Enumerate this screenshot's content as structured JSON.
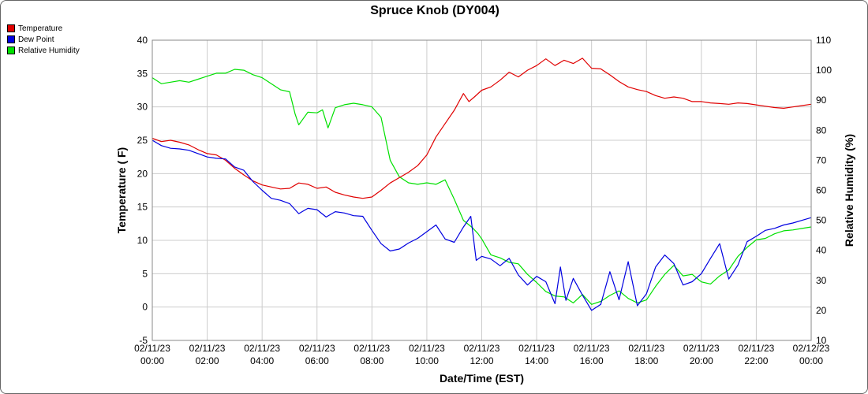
{
  "chart_data": {
    "type": "line",
    "title": "Spruce Knob (DY004)",
    "xlabel": "Date/Time (EST)",
    "ylabel": "Temperature ( F)",
    "y2label": "Relative Humidity (%)",
    "ylim": [
      -5,
      40
    ],
    "y2lim": [
      10,
      110
    ],
    "x_ticks": [
      {
        "hour": 0,
        "date": "02/11/23",
        "time": "00:00"
      },
      {
        "hour": 2,
        "date": "02/11/23",
        "time": "02:00"
      },
      {
        "hour": 4,
        "date": "02/11/23",
        "time": "04:00"
      },
      {
        "hour": 6,
        "date": "02/11/23",
        "time": "06:00"
      },
      {
        "hour": 8,
        "date": "02/11/23",
        "time": "08:00"
      },
      {
        "hour": 10,
        "date": "02/11/23",
        "time": "10:00"
      },
      {
        "hour": 12,
        "date": "02/11/23",
        "time": "12:00"
      },
      {
        "hour": 14,
        "date": "02/11/23",
        "time": "14:00"
      },
      {
        "hour": 16,
        "date": "02/11/23",
        "time": "16:00"
      },
      {
        "hour": 18,
        "date": "02/11/23",
        "time": "18:00"
      },
      {
        "hour": 20,
        "date": "02/11/23",
        "time": "20:00"
      },
      {
        "hour": 22,
        "date": "02/11/23",
        "time": "22:00"
      },
      {
        "hour": 24,
        "date": "02/12/23",
        "time": "00:00"
      }
    ],
    "y_ticks": [
      -5,
      0,
      5,
      10,
      15,
      20,
      25,
      30,
      35,
      40
    ],
    "y2_ticks": [
      10,
      20,
      30,
      40,
      50,
      60,
      70,
      80,
      90,
      100,
      110
    ],
    "grid": true,
    "legend_position": "top-left outside",
    "series": [
      {
        "name": "Temperature",
        "color": "#e00000",
        "axis": "left",
        "points": [
          [
            0,
            25.3
          ],
          [
            0.5,
            24.8
          ],
          [
            1,
            25.0
          ],
          [
            1.5,
            24.7
          ],
          [
            2,
            24.3
          ],
          [
            2.5,
            23.6
          ],
          [
            3,
            23.0
          ],
          [
            3.5,
            22.8
          ],
          [
            4,
            22.0
          ],
          [
            4.5,
            20.8
          ],
          [
            5,
            19.8
          ],
          [
            5.5,
            18.9
          ],
          [
            6,
            18.3
          ],
          [
            6.5,
            18.0
          ],
          [
            7,
            17.7
          ],
          [
            7.5,
            17.8
          ],
          [
            8,
            18.6
          ],
          [
            8.5,
            18.4
          ],
          [
            9,
            17.8
          ],
          [
            9.5,
            18.0
          ],
          [
            10,
            17.2
          ],
          [
            10.5,
            16.8
          ],
          [
            11,
            16.5
          ],
          [
            11.5,
            16.3
          ],
          [
            12,
            16.5
          ],
          [
            12.5,
            17.5
          ],
          [
            13,
            18.6
          ],
          [
            13.5,
            19.4
          ],
          [
            14,
            20.2
          ],
          [
            14.5,
            21.2
          ],
          [
            15,
            22.8
          ],
          [
            15.5,
            25.5
          ],
          [
            16,
            27.5
          ],
          [
            16.5,
            29.5
          ],
          [
            17,
            32.0
          ],
          [
            17.3,
            30.8
          ],
          [
            17.6,
            31.5
          ],
          [
            18,
            32.5
          ],
          [
            18.5,
            33.0
          ],
          [
            19,
            34.0
          ],
          [
            19.5,
            35.2
          ],
          [
            20,
            34.5
          ],
          [
            20.5,
            35.5
          ],
          [
            21,
            36.2
          ],
          [
            21.5,
            37.2
          ],
          [
            22,
            36.2
          ],
          [
            22.5,
            37.0
          ],
          [
            23,
            36.5
          ],
          [
            23.5,
            37.3
          ],
          [
            24,
            35.8
          ],
          [
            24.5,
            35.7
          ],
          [
            25,
            34.8
          ],
          [
            25.5,
            33.8
          ],
          [
            26,
            33.0
          ],
          [
            26.5,
            32.6
          ],
          [
            27,
            32.3
          ],
          [
            27.5,
            31.7
          ],
          [
            28,
            31.3
          ],
          [
            28.5,
            31.5
          ],
          [
            29,
            31.3
          ],
          [
            29.5,
            30.8
          ],
          [
            30,
            30.8
          ],
          [
            30.5,
            30.6
          ],
          [
            31,
            30.5
          ],
          [
            31.5,
            30.4
          ],
          [
            32,
            30.6
          ],
          [
            32.5,
            30.5
          ],
          [
            33,
            30.3
          ],
          [
            33.5,
            30.1
          ],
          [
            34,
            29.9
          ],
          [
            34.5,
            29.8
          ],
          [
            35,
            30.0
          ],
          [
            35.5,
            30.2
          ],
          [
            36,
            30.4
          ]
        ]
      },
      {
        "name": "Dew Point",
        "color": "#0000e0",
        "axis": "left",
        "points": [
          [
            0,
            25.0
          ],
          [
            0.5,
            24.2
          ],
          [
            1,
            23.8
          ],
          [
            1.5,
            23.7
          ],
          [
            2,
            23.5
          ],
          [
            2.5,
            23.0
          ],
          [
            3,
            22.5
          ],
          [
            3.5,
            22.3
          ],
          [
            4,
            22.2
          ],
          [
            4.5,
            21.0
          ],
          [
            5,
            20.5
          ],
          [
            5.5,
            18.8
          ],
          [
            6,
            17.5
          ],
          [
            6.5,
            16.3
          ],
          [
            7,
            16.0
          ],
          [
            7.5,
            15.5
          ],
          [
            8,
            14.0
          ],
          [
            8.5,
            14.8
          ],
          [
            9,
            14.6
          ],
          [
            9.5,
            13.5
          ],
          [
            10,
            14.3
          ],
          [
            10.5,
            14.1
          ],
          [
            11,
            13.7
          ],
          [
            11.5,
            13.6
          ],
          [
            12,
            11.5
          ],
          [
            12.5,
            9.5
          ],
          [
            13,
            8.4
          ],
          [
            13.5,
            8.7
          ],
          [
            14,
            9.6
          ],
          [
            14.5,
            10.3
          ],
          [
            15,
            11.3
          ],
          [
            15.5,
            12.3
          ],
          [
            16,
            10.2
          ],
          [
            16.5,
            9.7
          ],
          [
            17,
            12.0
          ],
          [
            17.4,
            13.6
          ],
          [
            17.7,
            7.0
          ],
          [
            18,
            7.6
          ],
          [
            18.5,
            7.2
          ],
          [
            19,
            6.2
          ],
          [
            19.5,
            7.3
          ],
          [
            20,
            4.8
          ],
          [
            20.5,
            3.3
          ],
          [
            21,
            4.6
          ],
          [
            21.5,
            3.8
          ],
          [
            22,
            0.5
          ],
          [
            22.3,
            6.0
          ],
          [
            22.6,
            1.0
          ],
          [
            23,
            4.3
          ],
          [
            23.5,
            1.8
          ],
          [
            24,
            -0.5
          ],
          [
            24.5,
            0.4
          ],
          [
            25,
            5.3
          ],
          [
            25.5,
            1.1
          ],
          [
            26,
            6.8
          ],
          [
            26.5,
            0.2
          ],
          [
            27,
            2.0
          ],
          [
            27.5,
            6.0
          ],
          [
            28,
            7.8
          ],
          [
            28.5,
            6.5
          ],
          [
            29,
            3.3
          ],
          [
            29.5,
            3.8
          ],
          [
            30,
            5.0
          ],
          [
            30.5,
            7.3
          ],
          [
            31,
            9.5
          ],
          [
            31.5,
            4.2
          ],
          [
            32,
            6.3
          ],
          [
            32.5,
            9.8
          ],
          [
            33,
            10.6
          ],
          [
            33.5,
            11.5
          ],
          [
            34,
            11.8
          ],
          [
            34.5,
            12.3
          ],
          [
            35,
            12.6
          ],
          [
            35.5,
            13.0
          ],
          [
            36,
            13.4
          ]
        ]
      },
      {
        "name": "Relative Humidity",
        "color": "#00e000",
        "axis": "right",
        "points": [
          [
            0,
            97.5
          ],
          [
            0.5,
            95.5
          ],
          [
            1,
            96.0
          ],
          [
            1.5,
            96.5
          ],
          [
            2,
            96.0
          ],
          [
            2.5,
            97.0
          ],
          [
            3,
            98.0
          ],
          [
            3.5,
            99.0
          ],
          [
            4,
            99.0
          ],
          [
            4.5,
            100.3
          ],
          [
            5,
            100.0
          ],
          [
            5.5,
            98.5
          ],
          [
            6,
            97.5
          ],
          [
            6.5,
            95.5
          ],
          [
            7,
            93.5
          ],
          [
            7.5,
            92.8
          ],
          [
            7.8,
            85.5
          ],
          [
            8,
            81.8
          ],
          [
            8.5,
            86.0
          ],
          [
            9,
            85.8
          ],
          [
            9.3,
            86.8
          ],
          [
            9.6,
            80.8
          ],
          [
            10,
            87.5
          ],
          [
            10.5,
            88.5
          ],
          [
            11,
            89.0
          ],
          [
            11.5,
            88.5
          ],
          [
            12,
            87.8
          ],
          [
            12.5,
            84.3
          ],
          [
            13,
            70.0
          ],
          [
            13.5,
            64.5
          ],
          [
            14,
            62.5
          ],
          [
            14.5,
            62.0
          ],
          [
            15,
            62.5
          ],
          [
            15.5,
            62.0
          ],
          [
            16,
            63.5
          ],
          [
            16.5,
            57.0
          ],
          [
            17,
            50.0
          ],
          [
            17.5,
            47.5
          ],
          [
            17.8,
            45.5
          ],
          [
            18,
            43.8
          ],
          [
            18.5,
            38.5
          ],
          [
            19,
            37.5
          ],
          [
            19.5,
            36.0
          ],
          [
            20,
            35.5
          ],
          [
            20.5,
            32.0
          ],
          [
            21,
            29.3
          ],
          [
            21.5,
            26.3
          ],
          [
            22,
            24.8
          ],
          [
            22.5,
            24.5
          ],
          [
            23,
            22.5
          ],
          [
            23.5,
            25.3
          ],
          [
            24,
            22.0
          ],
          [
            24.5,
            23.0
          ],
          [
            25,
            25.0
          ],
          [
            25.5,
            26.5
          ],
          [
            26,
            24.0
          ],
          [
            26.5,
            22.5
          ],
          [
            27,
            23.5
          ],
          [
            27.5,
            28.0
          ],
          [
            28,
            32.0
          ],
          [
            28.5,
            35.0
          ],
          [
            29,
            31.5
          ],
          [
            29.5,
            32.0
          ],
          [
            30,
            29.5
          ],
          [
            30.5,
            28.8
          ],
          [
            31,
            31.5
          ],
          [
            31.5,
            33.5
          ],
          [
            32,
            38.0
          ],
          [
            32.5,
            41.0
          ],
          [
            33,
            43.5
          ],
          [
            33.5,
            44.0
          ],
          [
            34,
            45.5
          ],
          [
            34.5,
            46.5
          ],
          [
            35,
            46.8
          ],
          [
            35.5,
            47.3
          ],
          [
            36,
            47.8
          ]
        ]
      }
    ]
  }
}
